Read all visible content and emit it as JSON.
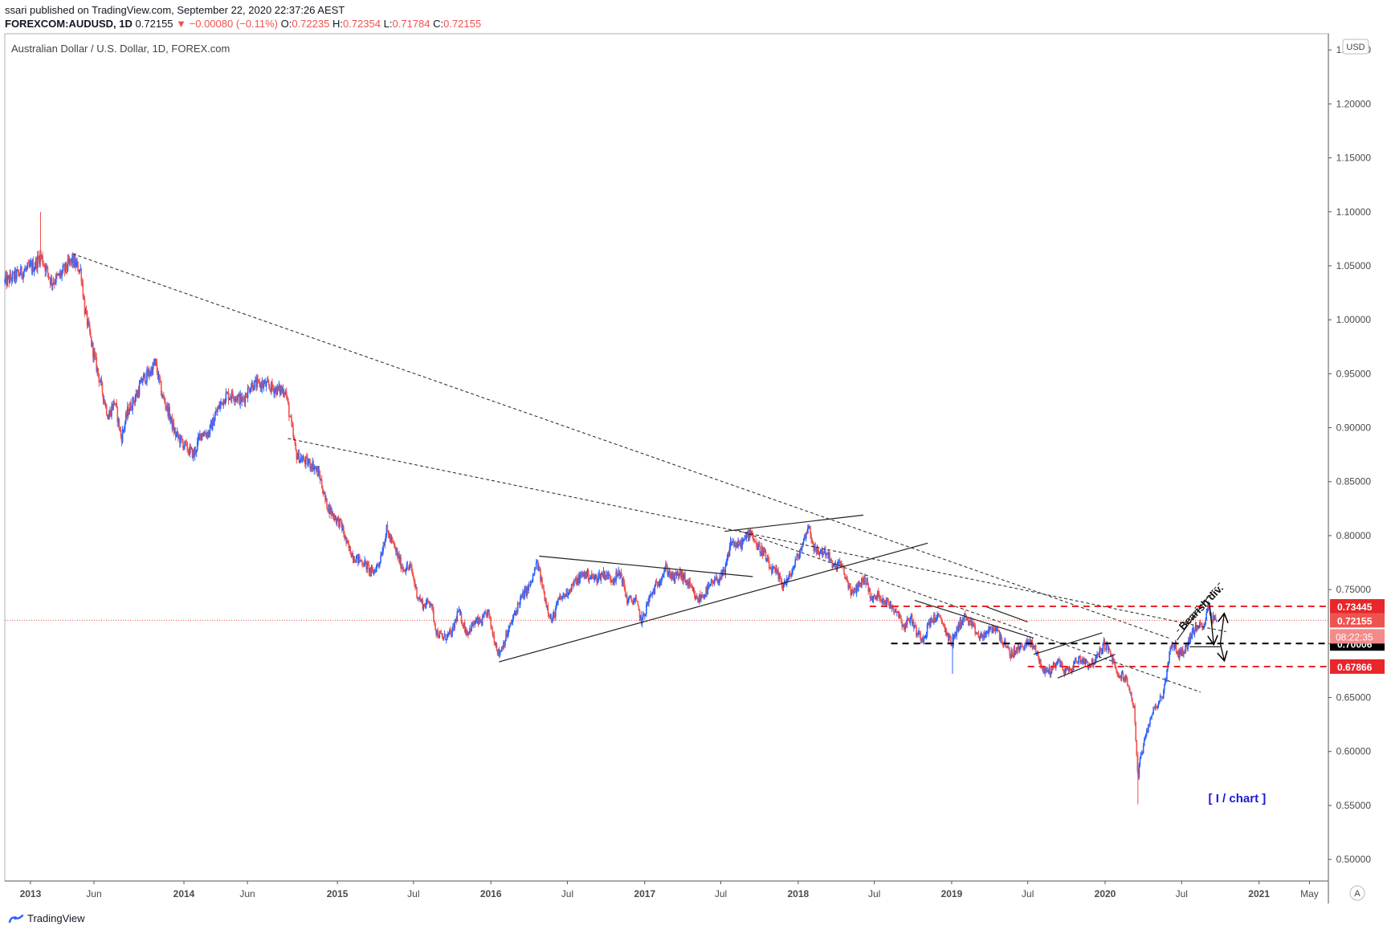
{
  "header": {
    "publisher_line": "ssari published on TradingView.com, September 22, 2020 22:37:26 AEST",
    "symbol": "FOREXCOM:AUDUSD, 1D",
    "last": "0.72155",
    "change": "▼ −0.00080 (−0.11%)",
    "ohlc": {
      "o_label": "O:",
      "o": "0.72235",
      "h_label": "H:",
      "h": "0.72354",
      "l_label": "L:",
      "l": "0.71784",
      "c_label": "C:",
      "c": "0.72155"
    }
  },
  "footer": {
    "brand": "TradingView"
  },
  "colors": {
    "up": "#2962ff",
    "down": "#ef5350",
    "bg": "#ffffff",
    "grid": "#e6e6e6",
    "axis_text": "#4a4a4a",
    "annotation_blue": "#1a1ad6",
    "label_dark": "#000000"
  },
  "chart_data": {
    "type": "candlestick",
    "title": "Australian Dollar / U.S. Dollar, 1D, FOREX.com",
    "currency": "USD",
    "ylim": [
      0.48,
      1.265
    ],
    "xlim": [
      "2012-11-01",
      "2021-06-15"
    ],
    "y_ticks": [
      "1.25000",
      "1.20000",
      "1.15000",
      "1.10000",
      "1.05000",
      "1.00000",
      "0.95000",
      "0.90000",
      "0.85000",
      "0.80000",
      "0.75000",
      "0.70000",
      "0.65000",
      "0.60000",
      "0.55000",
      "0.50000"
    ],
    "x_ticks": [
      {
        "label": "2013",
        "date": "2013-01-01",
        "bold": true
      },
      {
        "label": "Jun",
        "date": "2013-06-01",
        "bold": false
      },
      {
        "label": "2014",
        "date": "2014-01-01",
        "bold": true
      },
      {
        "label": "Jun",
        "date": "2014-06-01",
        "bold": false
      },
      {
        "label": "2015",
        "date": "2015-01-01",
        "bold": true
      },
      {
        "label": "Jul",
        "date": "2015-07-01",
        "bold": false
      },
      {
        "label": "2016",
        "date": "2016-01-01",
        "bold": true
      },
      {
        "label": "Jul",
        "date": "2016-07-01",
        "bold": false
      },
      {
        "label": "2017",
        "date": "2017-01-01",
        "bold": true
      },
      {
        "label": "Jul",
        "date": "2017-07-01",
        "bold": false
      },
      {
        "label": "2018",
        "date": "2018-01-01",
        "bold": true
      },
      {
        "label": "Jul",
        "date": "2018-07-01",
        "bold": false
      },
      {
        "label": "2019",
        "date": "2019-01-01",
        "bold": true
      },
      {
        "label": "Jul",
        "date": "2019-07-01",
        "bold": false
      },
      {
        "label": "2020",
        "date": "2020-01-01",
        "bold": true
      },
      {
        "label": "Jul",
        "date": "2020-07-01",
        "bold": false
      },
      {
        "label": "2021",
        "date": "2021-01-01",
        "bold": true
      },
      {
        "label": "May",
        "date": "2021-05-01",
        "bold": false
      }
    ],
    "price_path": [
      [
        "2012-11-01",
        1.035
      ],
      [
        "2012-12-15",
        1.045
      ],
      [
        "2013-01-10",
        1.05
      ],
      [
        "2013-01-25",
        1.06
      ],
      [
        "2013-02-20",
        1.035
      ],
      [
        "2013-03-10",
        1.04
      ],
      [
        "2013-04-10",
        1.055
      ],
      [
        "2013-05-01",
        1.045
      ],
      [
        "2013-05-10",
        1.01
      ],
      [
        "2013-05-25",
        0.98
      ],
      [
        "2013-06-05",
        0.96
      ],
      [
        "2013-06-20",
        0.935
      ],
      [
        "2013-07-05",
        0.91
      ],
      [
        "2013-07-20",
        0.925
      ],
      [
        "2013-08-05",
        0.89
      ],
      [
        "2013-08-20",
        0.915
      ],
      [
        "2013-09-10",
        0.93
      ],
      [
        "2013-09-25",
        0.945
      ],
      [
        "2013-10-10",
        0.95
      ],
      [
        "2013-10-25",
        0.96
      ],
      [
        "2013-11-10",
        0.93
      ],
      [
        "2013-11-25",
        0.915
      ],
      [
        "2013-12-10",
        0.895
      ],
      [
        "2014-01-10",
        0.88
      ],
      [
        "2014-01-25",
        0.875
      ],
      [
        "2014-02-10",
        0.895
      ],
      [
        "2014-03-01",
        0.895
      ],
      [
        "2014-03-20",
        0.915
      ],
      [
        "2014-04-10",
        0.93
      ],
      [
        "2014-05-01",
        0.93
      ],
      [
        "2014-05-20",
        0.925
      ],
      [
        "2014-06-10",
        0.94
      ],
      [
        "2014-07-10",
        0.94
      ],
      [
        "2014-08-10",
        0.935
      ],
      [
        "2014-08-30",
        0.935
      ],
      [
        "2014-09-10",
        0.91
      ],
      [
        "2014-09-25",
        0.875
      ],
      [
        "2014-10-10",
        0.87
      ],
      [
        "2014-11-05",
        0.865
      ],
      [
        "2014-11-20",
        0.855
      ],
      [
        "2014-12-05",
        0.83
      ],
      [
        "2014-12-20",
        0.82
      ],
      [
        "2015-01-10",
        0.81
      ],
      [
        "2015-01-25",
        0.79
      ],
      [
        "2015-02-10",
        0.78
      ],
      [
        "2015-03-05",
        0.775
      ],
      [
        "2015-03-25",
        0.765
      ],
      [
        "2015-04-10",
        0.775
      ],
      [
        "2015-04-28",
        0.805
      ],
      [
        "2015-05-15",
        0.79
      ],
      [
        "2015-06-05",
        0.77
      ],
      [
        "2015-06-25",
        0.77
      ],
      [
        "2015-07-10",
        0.745
      ],
      [
        "2015-07-25",
        0.735
      ],
      [
        "2015-08-10",
        0.74
      ],
      [
        "2015-08-25",
        0.71
      ],
      [
        "2015-09-10",
        0.705
      ],
      [
        "2015-10-01",
        0.71
      ],
      [
        "2015-10-15",
        0.73
      ],
      [
        "2015-11-05",
        0.71
      ],
      [
        "2015-11-25",
        0.72
      ],
      [
        "2015-12-10",
        0.72
      ],
      [
        "2015-12-25",
        0.73
      ],
      [
        "2016-01-05",
        0.71
      ],
      [
        "2016-01-20",
        0.69
      ],
      [
        "2016-02-10",
        0.71
      ],
      [
        "2016-03-10",
        0.74
      ],
      [
        "2016-04-05",
        0.755
      ],
      [
        "2016-04-20",
        0.775
      ],
      [
        "2016-05-10",
        0.74
      ],
      [
        "2016-05-25",
        0.72
      ],
      [
        "2016-06-10",
        0.74
      ],
      [
        "2016-06-25",
        0.745
      ],
      [
        "2016-07-15",
        0.755
      ],
      [
        "2016-08-10",
        0.765
      ],
      [
        "2016-09-05",
        0.76
      ],
      [
        "2016-09-25",
        0.765
      ],
      [
        "2016-10-15",
        0.76
      ],
      [
        "2016-11-05",
        0.765
      ],
      [
        "2016-11-20",
        0.74
      ],
      [
        "2016-12-10",
        0.74
      ],
      [
        "2016-12-25",
        0.72
      ],
      [
        "2017-01-10",
        0.74
      ],
      [
        "2017-01-30",
        0.755
      ],
      [
        "2017-02-20",
        0.77
      ],
      [
        "2017-03-10",
        0.76
      ],
      [
        "2017-03-25",
        0.765
      ],
      [
        "2017-04-15",
        0.755
      ],
      [
        "2017-05-05",
        0.74
      ],
      [
        "2017-05-20",
        0.745
      ],
      [
        "2017-06-10",
        0.755
      ],
      [
        "2017-06-25",
        0.76
      ],
      [
        "2017-07-10",
        0.765
      ],
      [
        "2017-07-25",
        0.795
      ],
      [
        "2017-08-10",
        0.79
      ],
      [
        "2017-08-25",
        0.795
      ],
      [
        "2017-09-10",
        0.805
      ],
      [
        "2017-09-25",
        0.79
      ],
      [
        "2017-10-10",
        0.785
      ],
      [
        "2017-10-25",
        0.77
      ],
      [
        "2017-11-10",
        0.765
      ],
      [
        "2017-11-25",
        0.755
      ],
      [
        "2017-12-10",
        0.76
      ],
      [
        "2017-12-25",
        0.775
      ],
      [
        "2018-01-10",
        0.79
      ],
      [
        "2018-01-25",
        0.81
      ],
      [
        "2018-02-10",
        0.785
      ],
      [
        "2018-02-25",
        0.785
      ],
      [
        "2018-03-10",
        0.785
      ],
      [
        "2018-03-25",
        0.77
      ],
      [
        "2018-04-10",
        0.775
      ],
      [
        "2018-04-25",
        0.76
      ],
      [
        "2018-05-10",
        0.745
      ],
      [
        "2018-05-25",
        0.755
      ],
      [
        "2018-06-10",
        0.76
      ],
      [
        "2018-06-25",
        0.74
      ],
      [
        "2018-07-10",
        0.745
      ],
      [
        "2018-07-25",
        0.74
      ],
      [
        "2018-08-10",
        0.735
      ],
      [
        "2018-08-25",
        0.73
      ],
      [
        "2018-09-10",
        0.715
      ],
      [
        "2018-09-25",
        0.725
      ],
      [
        "2018-10-10",
        0.71
      ],
      [
        "2018-10-25",
        0.705
      ],
      [
        "2018-11-10",
        0.72
      ],
      [
        "2018-11-25",
        0.725
      ],
      [
        "2018-12-10",
        0.72
      ],
      [
        "2018-12-25",
        0.705
      ],
      [
        "2019-01-03",
        0.7
      ],
      [
        "2019-01-15",
        0.715
      ],
      [
        "2019-02-01",
        0.725
      ],
      [
        "2019-02-20",
        0.715
      ],
      [
        "2019-03-10",
        0.705
      ],
      [
        "2019-03-25",
        0.71
      ],
      [
        "2019-04-15",
        0.715
      ],
      [
        "2019-05-05",
        0.7
      ],
      [
        "2019-05-20",
        0.69
      ],
      [
        "2019-06-10",
        0.695
      ],
      [
        "2019-06-25",
        0.7
      ],
      [
        "2019-07-10",
        0.7
      ],
      [
        "2019-07-25",
        0.69
      ],
      [
        "2019-08-05",
        0.675
      ],
      [
        "2019-08-25",
        0.675
      ],
      [
        "2019-09-10",
        0.685
      ],
      [
        "2019-09-25",
        0.675
      ],
      [
        "2019-10-10",
        0.675
      ],
      [
        "2019-10-25",
        0.685
      ],
      [
        "2019-11-10",
        0.685
      ],
      [
        "2019-11-25",
        0.68
      ],
      [
        "2019-12-10",
        0.685
      ],
      [
        "2019-12-30",
        0.7
      ],
      [
        "2020-01-15",
        0.69
      ],
      [
        "2020-01-30",
        0.67
      ],
      [
        "2020-02-15",
        0.67
      ],
      [
        "2020-03-01",
        0.655
      ],
      [
        "2020-03-10",
        0.64
      ],
      [
        "2020-03-19",
        0.575
      ],
      [
        "2020-03-25",
        0.595
      ],
      [
        "2020-04-05",
        0.61
      ],
      [
        "2020-04-20",
        0.635
      ],
      [
        "2020-05-05",
        0.645
      ],
      [
        "2020-05-20",
        0.655
      ],
      [
        "2020-06-01",
        0.69
      ],
      [
        "2020-06-10",
        0.7
      ],
      [
        "2020-06-25",
        0.69
      ],
      [
        "2020-07-10",
        0.695
      ],
      [
        "2020-07-25",
        0.71
      ],
      [
        "2020-08-10",
        0.715
      ],
      [
        "2020-08-25",
        0.72
      ],
      [
        "2020-09-02",
        0.735
      ],
      [
        "2020-09-10",
        0.725
      ],
      [
        "2020-09-22",
        0.7216
      ]
    ],
    "trendlines": [
      {
        "p1": [
          "2013-04-12",
          1.061
        ],
        "p2": [
          "2020-06-01",
          0.705
        ],
        "style": "dashed"
      },
      {
        "p1": [
          "2014-09-05",
          0.89
        ],
        "p2": [
          "2020-10-15",
          0.711
        ],
        "style": "dashed"
      },
      {
        "p1": [
          "2017-08-10",
          0.805
        ],
        "p2": [
          "2020-08-15",
          0.655
        ],
        "style": "dashed"
      },
      {
        "p1": [
          "2016-01-20",
          0.683
        ],
        "p2": [
          "2018-11-05",
          0.793
        ],
        "style": "solid"
      },
      {
        "p1": [
          "2016-04-25",
          0.781
        ],
        "p2": [
          "2017-09-15",
          0.762
        ],
        "style": "solid"
      },
      {
        "p1": [
          "2017-07-10",
          0.804
        ],
        "p2": [
          "2018-06-05",
          0.819
        ],
        "style": "solid"
      },
      {
        "p1": [
          "2018-10-05",
          0.74
        ],
        "p2": [
          "2019-07-15",
          0.705
        ],
        "style": "solid"
      },
      {
        "p1": [
          "2019-07-15",
          0.69
        ],
        "p2": [
          "2019-12-25",
          0.71
        ],
        "style": "solid"
      },
      {
        "p1": [
          "2019-09-10",
          0.668
        ],
        "p2": [
          "2020-01-25",
          0.69
        ],
        "style": "solid"
      },
      {
        "p1": [
          "2020-06-20",
          0.703
        ],
        "p2": [
          "2020-09-05",
          0.745
        ],
        "style": "solid"
      },
      {
        "p1": [
          "2020-06-20",
          0.711
        ],
        "p2": [
          "2020-10-01",
          0.757
        ],
        "style": "dashed"
      },
      {
        "p1": [
          "2020-07-20",
          0.697
        ],
        "p2": [
          "2020-10-01",
          0.697
        ],
        "style": "solid"
      },
      {
        "p1": [
          "2019-03-25",
          0.734
        ],
        "p2": [
          "2019-07-01",
          0.72
        ],
        "style": "solid"
      }
    ],
    "horizontal_levels": [
      {
        "value": 0.73445,
        "start": "2018-06-20",
        "color": "#e8262b",
        "label": "0.73445",
        "label_bg": "#e8262b"
      },
      {
        "value": 0.70006,
        "start": "2018-08-10",
        "color": "#000000",
        "label": "0.70006",
        "label_bg": "#000000"
      },
      {
        "value": 0.67866,
        "start": "2019-07-01",
        "color": "#e8262b",
        "label": "0.67866",
        "label_bg": "#e8262b"
      }
    ],
    "last_price": {
      "value": 0.72155,
      "label": "0.72155",
      "countdown": "08:22:35",
      "label_bg": "#ef5350"
    },
    "annotations": [
      {
        "text": "Bearish div.",
        "date": "2020-07-05",
        "value": 0.712,
        "rotation": -46
      },
      {
        "text": "[ I / chart ]",
        "date": "2020-11-10",
        "value": 0.553,
        "color": "#1a1ad6"
      }
    ],
    "arrows": [
      {
        "from": [
          "2020-09-05",
          0.738
        ],
        "to": [
          "2020-09-15",
          0.7
        ]
      },
      {
        "from": [
          "2020-10-01",
          0.7
        ],
        "to": [
          "2020-10-10",
          0.727
        ]
      },
      {
        "from": [
          "2020-10-01",
          0.7
        ],
        "to": [
          "2020-10-10",
          0.685
        ]
      }
    ],
    "axis_letter": "A"
  }
}
